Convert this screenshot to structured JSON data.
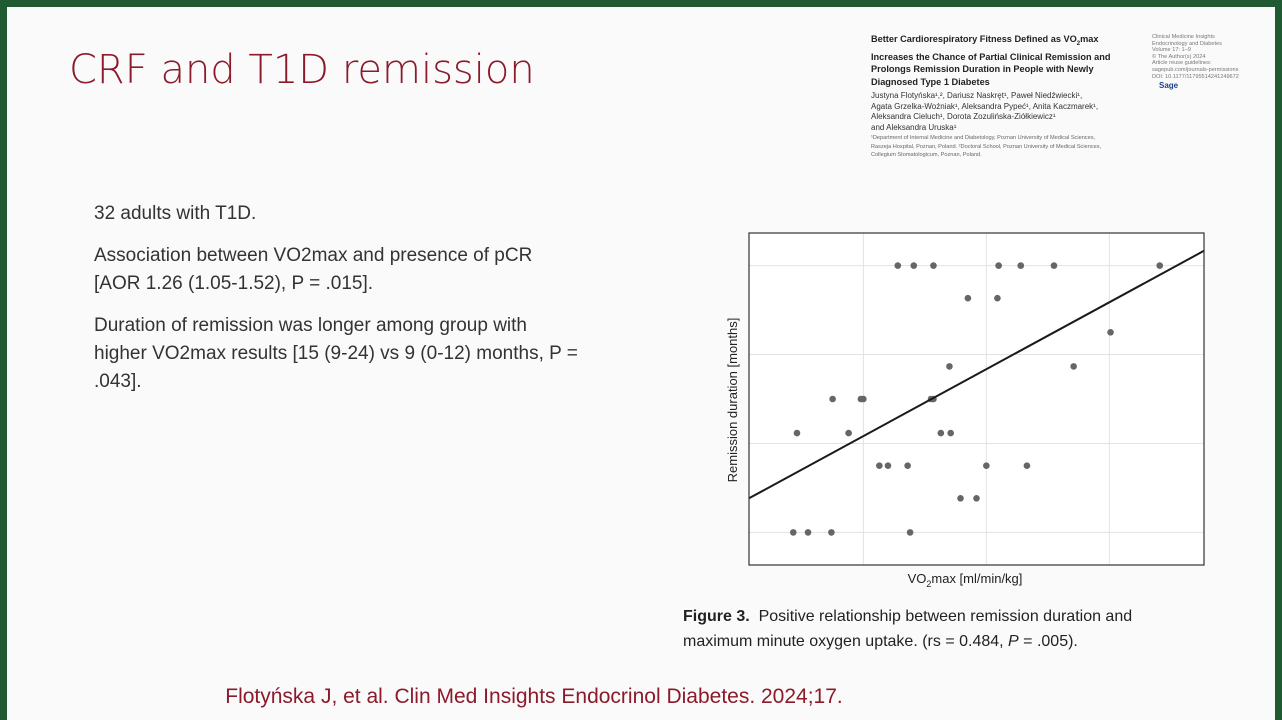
{
  "slide": {
    "title": "CRF and T1D remission",
    "bullets": [
      "32 adults with T1D.",
      "Association between VO2max and presence of pCR [AOR 1.26 (1.05-1.52), P = .015].",
      "Duration of remission was longer among group with higher VO2max results [15 (9-24) vs 9 (0-12) months, P = .043]."
    ],
    "citation": "Flotyńska J, et al. Clin Med Insights Endocrinol Diabetes. 2024;17."
  },
  "paper": {
    "title_parts": [
      "Better Cardiorespiratory Fitness Defined as VO",
      "2",
      "max Increases the Chance of Partial Clinical Remission and Prolongs Remission Duration in People with Newly Diagnosed Type 1 Diabetes"
    ],
    "authors": [
      "Justyna Flotyńska¹,², Dariusz Naskręt¹, Paweł Niedźwiecki¹,",
      "Agata Grzelka-Woźniak¹, Aleksandra Pypeć¹, Anita Kaczmarek¹,",
      "Aleksandra Cieluch¹, Dorota Zozulińska-Ziółkiewicz¹",
      "and Aleksandra Uruska¹"
    ],
    "affiliations": [
      "¹Department of Internal Medicine and Diabetology, Poznan University of Medical Sciences,",
      "Raszeja Hospital, Poznan, Poland. ²Doctoral School, Poznan University of Medical Sciences,",
      "Collegium Stomatologicum, Poznan, Poland."
    ],
    "journal": [
      "Clinical Medicine Insights",
      "Endocrinology and Diabetes",
      "Volume 17: 1–9",
      "© The Author(s) 2024",
      "Article reuse guidelines:",
      "sagepub.com/journals-permissions",
      "DOI: 10.1177/11795514241249672"
    ],
    "publisher": "Sage"
  },
  "chart_data": {
    "type": "scatter",
    "y_label": "Remission duration [months]",
    "x_label_parts": [
      "VO",
      "2",
      "max [ml/min/kg]"
    ],
    "x": [
      24.3,
      25.5,
      27.4,
      33.8,
      37.9,
      39.2,
      31.3,
      32.0,
      33.6,
      40.0,
      43.3,
      24.6,
      28.8,
      36.3,
      37.1,
      27.5,
      29.8,
      30.0,
      35.5,
      35.7,
      37.0,
      47.1,
      50.1,
      38.5,
      40.9,
      32.8,
      34.1,
      35.7,
      41.0,
      42.8,
      45.5,
      54.1
    ],
    "y": [
      0,
      0,
      0,
      0,
      2.3,
      2.3,
      4.5,
      4.5,
      4.5,
      4.5,
      4.5,
      6.7,
      6.7,
      6.7,
      6.7,
      9.0,
      9.0,
      9.0,
      9.0,
      9.0,
      11.2,
      11.2,
      13.5,
      15.8,
      15.8,
      18.0,
      18.0,
      18.0,
      18.0,
      18.0,
      18.0,
      18.0
    ],
    "color": "#666666",
    "fit_line": {
      "x": [
        20.7,
        57.7
      ],
      "y": [
        2.3,
        19.0
      ],
      "color": "#1a1a1a"
    },
    "xlim": [
      20.7,
      57.7
    ],
    "ylim": [
      -2.2,
      20.2
    ],
    "xticks": [
      30,
      40,
      50
    ],
    "yticks": [
      0,
      6,
      12,
      18
    ],
    "grid": true,
    "caption": {
      "label": "Figure 3.",
      "text_parts": [
        "Positive relationship between remission duration and maximum minute oxygen uptake. (rs = 0.484, ",
        "P",
        " = .005)."
      ]
    }
  }
}
